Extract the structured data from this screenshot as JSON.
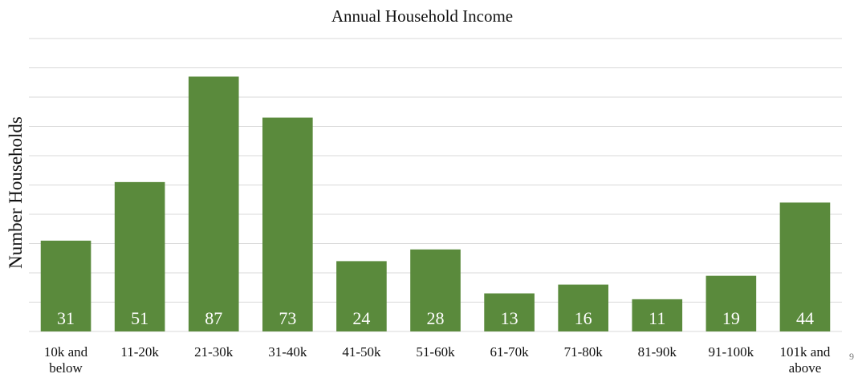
{
  "page_number": "9",
  "chart_data": {
    "type": "bar",
    "title": "Annual Household Income",
    "xlabel": "",
    "ylabel": "Number Households",
    "ylim": [
      0,
      100
    ],
    "grid": true,
    "gridline_step": 10,
    "show_y_tick_labels": false,
    "data_labels": "inside-bottom",
    "bar_color": "#5a8a3c",
    "grid_color": "#d9d9d9",
    "categories": [
      [
        "10k and",
        "below"
      ],
      [
        "11-20k"
      ],
      [
        "21-30k"
      ],
      [
        "31-40k"
      ],
      [
        "41-50k"
      ],
      [
        "51-60k"
      ],
      [
        "61-70k"
      ],
      [
        "71-80k"
      ],
      [
        "81-90k"
      ],
      [
        "91-100k"
      ],
      [
        "101k and",
        "above"
      ]
    ],
    "values": [
      31,
      51,
      87,
      73,
      24,
      28,
      13,
      16,
      11,
      19,
      44
    ]
  }
}
